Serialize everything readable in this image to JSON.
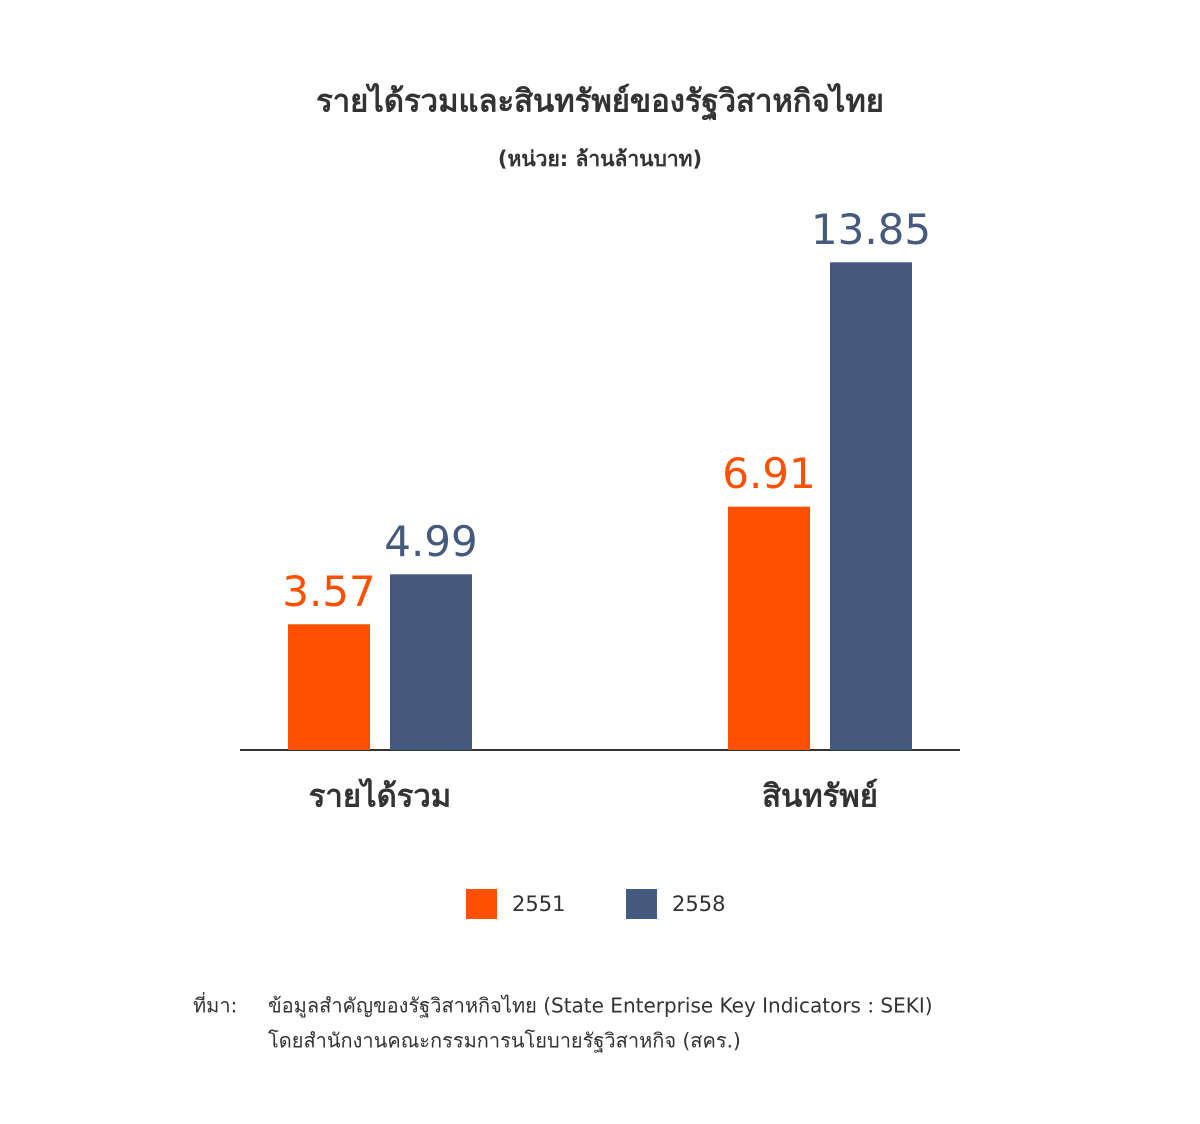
{
  "chart_data": {
    "type": "bar",
    "title": "รายได้รวมและสินทรัพย์ของรัฐวิสาหกิจไทย",
    "subtitle": "(หน่วย: ล้านล้านบาท)",
    "categories": [
      "รายได้รวม",
      "สินทรัพย์"
    ],
    "series": [
      {
        "name": "2551",
        "color": "#ff5000",
        "values": [
          3.57,
          6.91
        ]
      },
      {
        "name": "2558",
        "color": "#465a7d",
        "values": [
          4.99,
          13.85
        ]
      }
    ],
    "ylim": [
      0,
      14
    ],
    "source": {
      "label": "ที่มา:",
      "lines": [
        "ข้อมูลสำคัญของรัฐวิสาหกิจไทย (State Enterprise Key Indicators : SEKI)",
        "โดยสำนักงานคณะกรรมการนโยบายรัฐวิสาหกิจ (สคร.)"
      ]
    }
  }
}
